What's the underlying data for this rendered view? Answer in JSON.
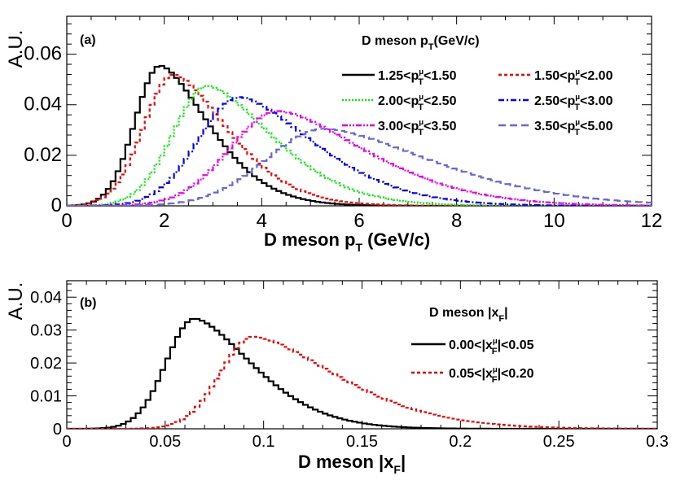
{
  "chart_data": [
    {
      "type": "line",
      "panel_label": "(a)",
      "title": "D meson p",
      "title_sub": "T",
      "title_suffix": "(GeV/c)",
      "xlabel": "D meson p",
      "xlabel_sub": "T",
      "xlabel_suffix": " (GeV/c)",
      "ylabel": "A.U.",
      "xlim": [
        0,
        12
      ],
      "ylim": [
        0,
        0.075
      ],
      "x_ticks": [
        0,
        2,
        4,
        6,
        8,
        10,
        12
      ],
      "x_tick_labels": [
        "0",
        "2",
        "4",
        "6",
        "8",
        "10",
        "12"
      ],
      "y_ticks": [
        0,
        0.02,
        0.04,
        0.06
      ],
      "y_tick_labels": [
        "0",
        "0.02",
        "0.04",
        "0.06"
      ],
      "bin_width": 0.1,
      "legend_position": "top-right",
      "series": [
        {
          "name": "1.25<p_T^μ<1.50",
          "lead": "1.25<p",
          "trail": "<1.50",
          "color": "#000000",
          "dash": "none",
          "peak_x": 1.92,
          "peak_y": 0.0555,
          "sigma_left": 0.52,
          "sigma_right": 0.95,
          "tail": 1.6
        },
        {
          "name": "1.50<p_T^μ<2.00",
          "lead": "1.50<p",
          "trail": "<2.00",
          "color": "#ff0000",
          "dash": "4,3",
          "peak_x": 2.2,
          "peak_y": 0.052,
          "sigma_left": 0.62,
          "sigma_right": 1.05,
          "tail": 1.6
        },
        {
          "name": "2.00<p_T^μ<2.50",
          "lead": "2.00<p",
          "trail": "<2.50",
          "color": "#00ee00",
          "dash": "2,2",
          "peak_x": 2.9,
          "peak_y": 0.0475,
          "sigma_left": 0.72,
          "sigma_right": 1.25,
          "tail": 1.6
        },
        {
          "name": "2.50<p_T^μ<3.00",
          "lead": "2.50<p",
          "trail": "<3.00",
          "color": "#0000ff",
          "dash": "7,3,2,3",
          "peak_x": 3.55,
          "peak_y": 0.043,
          "sigma_left": 0.85,
          "sigma_right": 1.45,
          "tail": 1.6
        },
        {
          "name": "3.00<p_T^μ<3.50",
          "lead": "3.00<p",
          "trail": "<3.50",
          "color": "#ee00ee",
          "dash": "7,2,2,2,2,2",
          "peak_x": 4.35,
          "peak_y": 0.0375,
          "sigma_left": 1.0,
          "sigma_right": 1.7,
          "tail": 1.6
        },
        {
          "name": "3.50<p_T^μ<5.00",
          "lead": "3.50<p",
          "trail": "<5.00",
          "color": "#6666dd",
          "dash": "9,5",
          "peak_x": 5.3,
          "peak_y": 0.0305,
          "sigma_left": 1.2,
          "sigma_right": 2.1,
          "tail": 1.6
        }
      ]
    },
    {
      "type": "line",
      "panel_label": "(b)",
      "title": "D meson |x",
      "title_sub": "F",
      "title_suffix": "|",
      "xlabel": "D meson |x",
      "xlabel_sub": "F",
      "xlabel_suffix": "|",
      "ylabel": "A.U.",
      "xlim": [
        0,
        0.3
      ],
      "ylim": [
        0,
        0.045
      ],
      "x_ticks": [
        0,
        0.05,
        0.1,
        0.15,
        0.2,
        0.25,
        0.3
      ],
      "x_tick_labels": [
        "0",
        "0.05",
        "0.1",
        "0.15",
        "0.2",
        "0.25",
        "0.3"
      ],
      "y_ticks": [
        0,
        0.01,
        0.02,
        0.03,
        0.04
      ],
      "y_tick_labels": [
        "0",
        "0.01",
        "0.02",
        "0.03",
        "0.04"
      ],
      "bin_width": 0.0025,
      "legend_position": "right",
      "series": [
        {
          "name": "0.00<|x_F^μ|<0.05",
          "lead": "0.00<|x",
          "trail": "|<0.05",
          "color": "#000000",
          "dash": "none",
          "peak_x": 0.065,
          "peak_y": 0.0335,
          "sigma_left": 0.0145,
          "sigma_right": 0.028,
          "tail": 1.6
        },
        {
          "name": "0.05<|x_F^μ|<0.20",
          "lead": "0.05<|x",
          "trail": "|<0.20",
          "color": "#ff0000",
          "dash": "4,3",
          "peak_x": 0.095,
          "peak_y": 0.028,
          "sigma_left": 0.017,
          "sigma_right": 0.04,
          "tail": 1.6
        }
      ]
    }
  ]
}
